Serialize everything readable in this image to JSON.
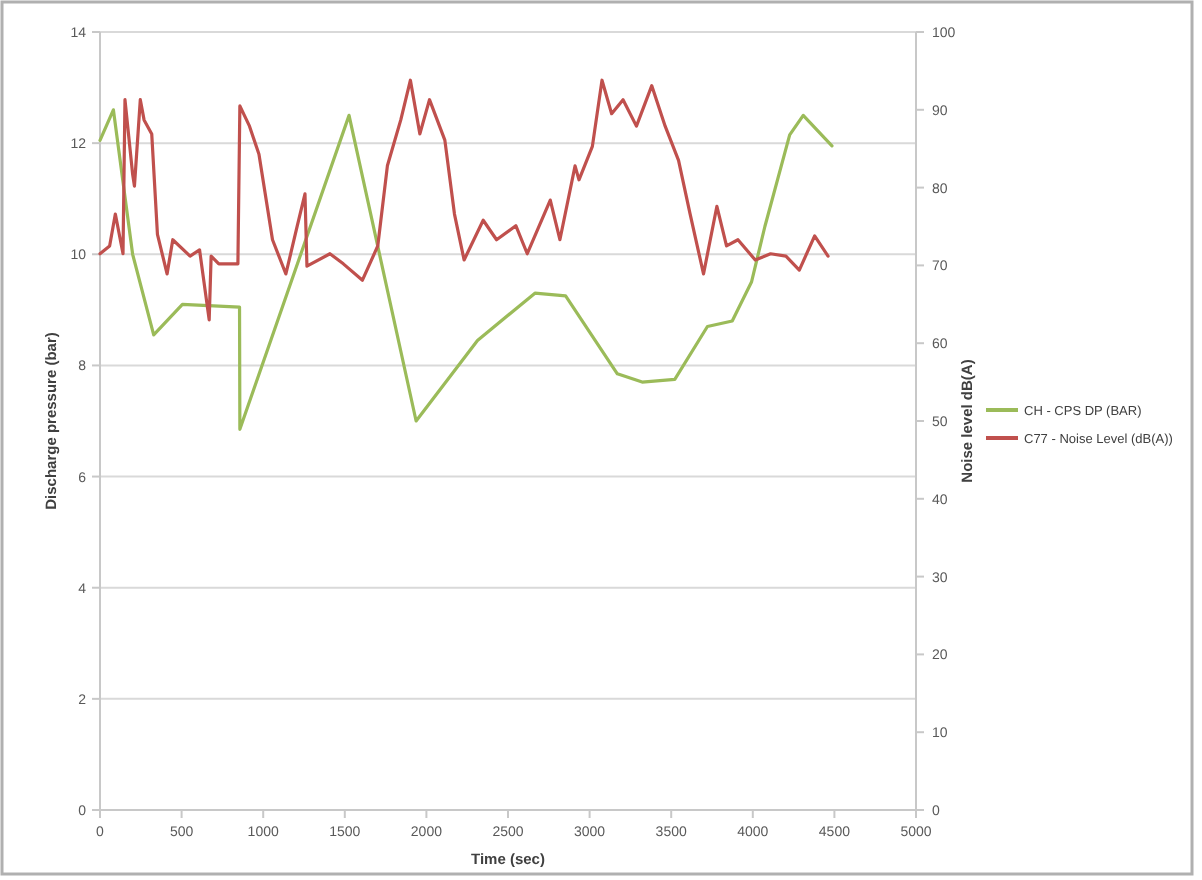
{
  "chart_data": {
    "type": "line",
    "xlabel": "Time (sec)",
    "ylabel": "Discharge pressure (bar)",
    "y2label": "Noise level dB(A)",
    "xlim": [
      0,
      5000
    ],
    "xticks": [
      0,
      500,
      1000,
      1500,
      2000,
      2500,
      3000,
      3500,
      4000,
      4500,
      5000
    ],
    "ylim": [
      0,
      14
    ],
    "yticks": [
      0,
      2,
      4,
      6,
      8,
      10,
      12,
      14
    ],
    "y2lim": [
      0,
      100
    ],
    "y2ticks": [
      0,
      10,
      20,
      30,
      40,
      50,
      60,
      70,
      80,
      90,
      100
    ],
    "grid": "y",
    "legend": "right",
    "marker": "none",
    "line_style": "solid",
    "series": [
      {
        "name": "CH - CPS DP (BAR)",
        "color": "#9bbb59",
        "x": [
          0,
          82,
          200,
          329,
          505,
          855,
          857,
          1526,
          1937,
          2313,
          2665,
          2853,
          3170,
          3322,
          3522,
          3722,
          3874,
          3992,
          4074,
          4226,
          4309,
          4485
        ],
        "values": [
          12.05,
          12.6,
          10.0,
          8.55,
          9.1,
          9.05,
          6.85,
          12.5,
          7.0,
          8.45,
          9.3,
          9.25,
          7.85,
          7.7,
          7.75,
          8.7,
          8.8,
          9.5,
          10.5,
          12.15,
          12.5,
          11.95
        ]
      },
      {
        "name": "C77 - Noise Level (dB(A))",
        "color": "#c0504d",
        "axis": "y2",
        "x": [
          0,
          59,
          94,
          141,
          153,
          200,
          211,
          247,
          270,
          317,
          352,
          411,
          446,
          552,
          610,
          669,
          681,
          728,
          845,
          857,
          916,
          974,
          1057,
          1139,
          1209,
          1256,
          1268,
          1409,
          1491,
          1608,
          1702,
          1761,
          1843,
          1902,
          1960,
          2019,
          2113,
          2172,
          2231,
          2348,
          2430,
          2548,
          2618,
          2759,
          2818,
          2911,
          2935,
          3017,
          3076,
          3135,
          3205,
          3287,
          3381,
          3463,
          3545,
          3616,
          3698,
          3780,
          3839,
          3909,
          4015,
          4109,
          4203,
          4285,
          4379,
          4461
        ],
        "values": [
          71.5,
          72.5,
          76.6,
          71.5,
          91.3,
          81.7,
          80.2,
          91.3,
          88.7,
          86.9,
          74,
          68.9,
          73.3,
          71.2,
          72,
          63,
          71.2,
          70.2,
          70.2,
          90.5,
          87.9,
          84.3,
          73.3,
          68.9,
          75.1,
          79.2,
          69.9,
          71.5,
          70.2,
          68.1,
          72.5,
          82.8,
          88.7,
          93.8,
          86.9,
          91.3,
          86.1,
          76.6,
          70.7,
          75.8,
          73.3,
          75.1,
          71.5,
          78.4,
          73.3,
          82.8,
          81,
          85.3,
          93.8,
          89.5,
          91.3,
          87.9,
          93.1,
          87.9,
          83.5,
          76.6,
          68.9,
          77.6,
          72.5,
          73.3,
          70.7,
          71.5,
          71.2,
          69.4,
          73.8,
          71.2
        ]
      }
    ]
  }
}
